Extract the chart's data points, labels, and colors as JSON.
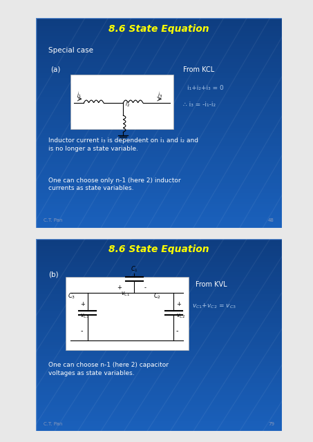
{
  "bg_color": "#e8e8e8",
  "slide_bg1": "#1a5fbb",
  "slide_bg2": "#1a5fbb",
  "title_text": "8.6 State Equation",
  "title_color": "#ffff00",
  "white_text": "#ffffff",
  "light_blue_text": "#adc8e8",
  "slide1_special": "Special case",
  "slide1_label": "(a)",
  "slide1_kcl": "From KCL",
  "slide1_eq1": "i₁+i₂+i₃ = 0",
  "slide1_eq2": "∴ i₃ = -i₁-i₂",
  "slide1_body1": "Inductor current i₃ is dependent on i₁ and i₂ and\nis no longer a state variable.",
  "slide1_body2": "One can choose only n-1 (here 2) inductor\ncurrents as state variables.",
  "slide1_footer": "C.T. Pan",
  "slide1_page": "48",
  "slide2_label": "(b)",
  "slide2_kvl": "From KVL",
  "slide2_eq": "v₁+v₂ = v₃",
  "slide2_body": "One can choose n-1 (here 2) capacitor\nvoltages as state variables.",
  "slide2_footer": "C.T. Pan",
  "slide2_page": "79"
}
